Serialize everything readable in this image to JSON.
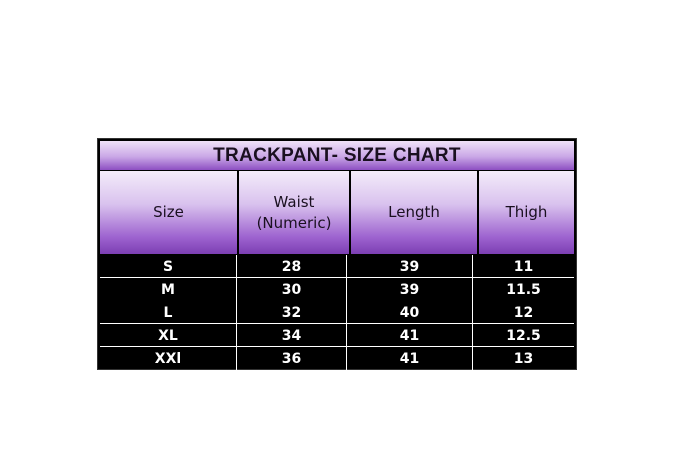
{
  "title": "TRACKPANT- SIZE CHART",
  "headers": [
    "Size",
    "Waist\n(Numeric)",
    "Length",
    "Thigh"
  ],
  "header_lines": {
    "waist_1": "Waist",
    "waist_2": "(Numeric)"
  },
  "rows": [
    [
      "S",
      "28",
      "39",
      "11"
    ],
    [
      "M",
      "30",
      "39",
      "11.5"
    ],
    [
      "L",
      "32",
      "40",
      "12"
    ],
    [
      "XL",
      "34",
      "41",
      "12.5"
    ],
    [
      "XXl",
      "36",
      "41",
      "13"
    ]
  ],
  "colors": {
    "header_top": "#f4ecfa",
    "header_bottom": "#7c3fb3",
    "body_bg": "#000000",
    "body_text": "#ffffff"
  }
}
